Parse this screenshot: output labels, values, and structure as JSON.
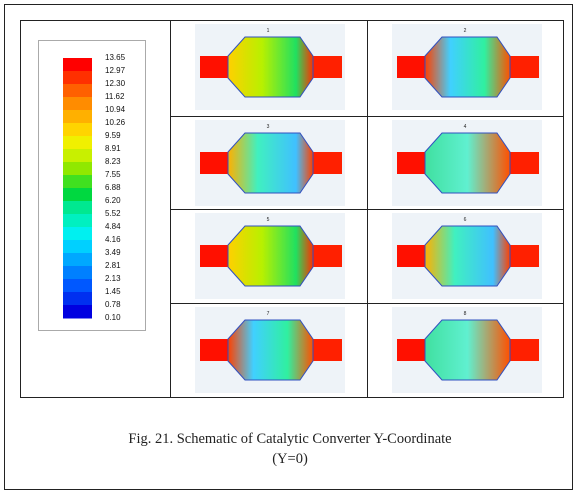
{
  "figure": {
    "colorbar_labels": [
      "13.65",
      "12.97",
      "12.30",
      "11.62",
      "10.94",
      "10.26",
      "9.59",
      "8.91",
      "8.23",
      "7.55",
      "6.88",
      "6.20",
      "5.52",
      "4.84",
      "4.16",
      "3.49",
      "2.81",
      "2.13",
      "1.45",
      "0.78",
      "0.10"
    ],
    "panels": [
      "1",
      "2",
      "3",
      "4",
      "5",
      "6",
      "7",
      "8"
    ],
    "caption": {
      "line1": "Fig. 21. Schematic of Catalytic Converter Y-Coordinate",
      "line2": "(Y=0)"
    }
  }
}
